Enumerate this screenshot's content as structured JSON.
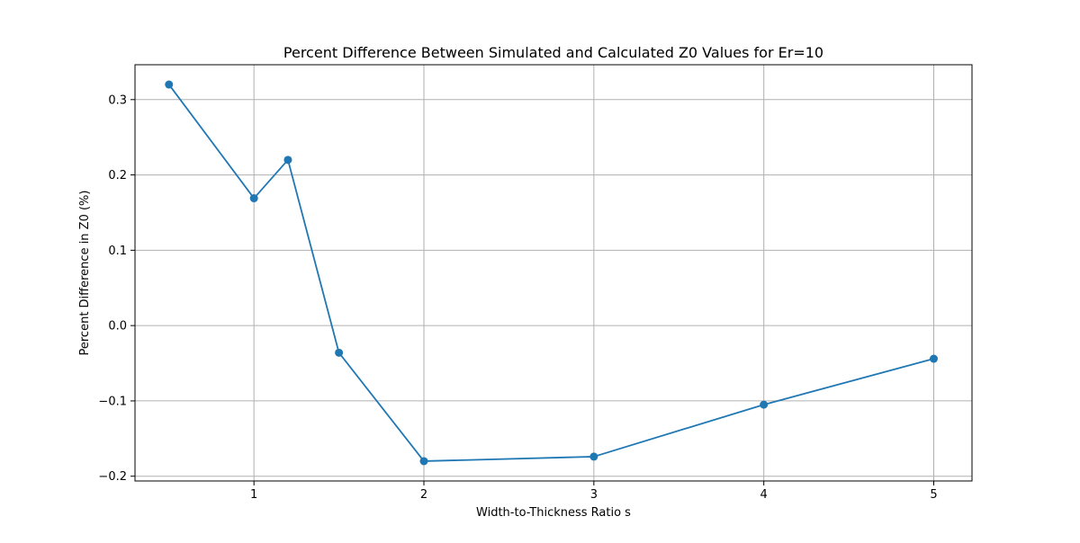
{
  "chart_data": {
    "type": "line",
    "title": "Percent Difference Between Simulated and Calculated Z0 Values for Er=10",
    "xlabel": "Width-to-Thickness Ratio s",
    "ylabel": "Percent Difference in Z0 (%)",
    "x": [
      0.5,
      1.0,
      1.2,
      1.5,
      2.0,
      3.0,
      4.0,
      5.0
    ],
    "series": [
      {
        "name": "",
        "values": [
          0.32,
          0.169,
          0.22,
          -0.036,
          -0.18,
          -0.174,
          -0.105,
          -0.044
        ],
        "color": "#1f77b4",
        "marker": "circle"
      }
    ],
    "xlim": [
      0.3,
      5.225
    ],
    "ylim": [
      -0.2063,
      0.3463
    ],
    "xticks": [
      1,
      2,
      3,
      4,
      5
    ],
    "xtick_labels": [
      "1",
      "2",
      "3",
      "4",
      "5"
    ],
    "yticks": [
      -0.2,
      -0.1,
      0.0,
      0.1,
      0.2,
      0.3
    ],
    "ytick_labels": [
      "−0.2",
      "−0.1",
      "0.0",
      "0.1",
      "0.2",
      "0.3"
    ],
    "grid": true,
    "grid_color": "#b0b0b0",
    "legend": "none"
  }
}
